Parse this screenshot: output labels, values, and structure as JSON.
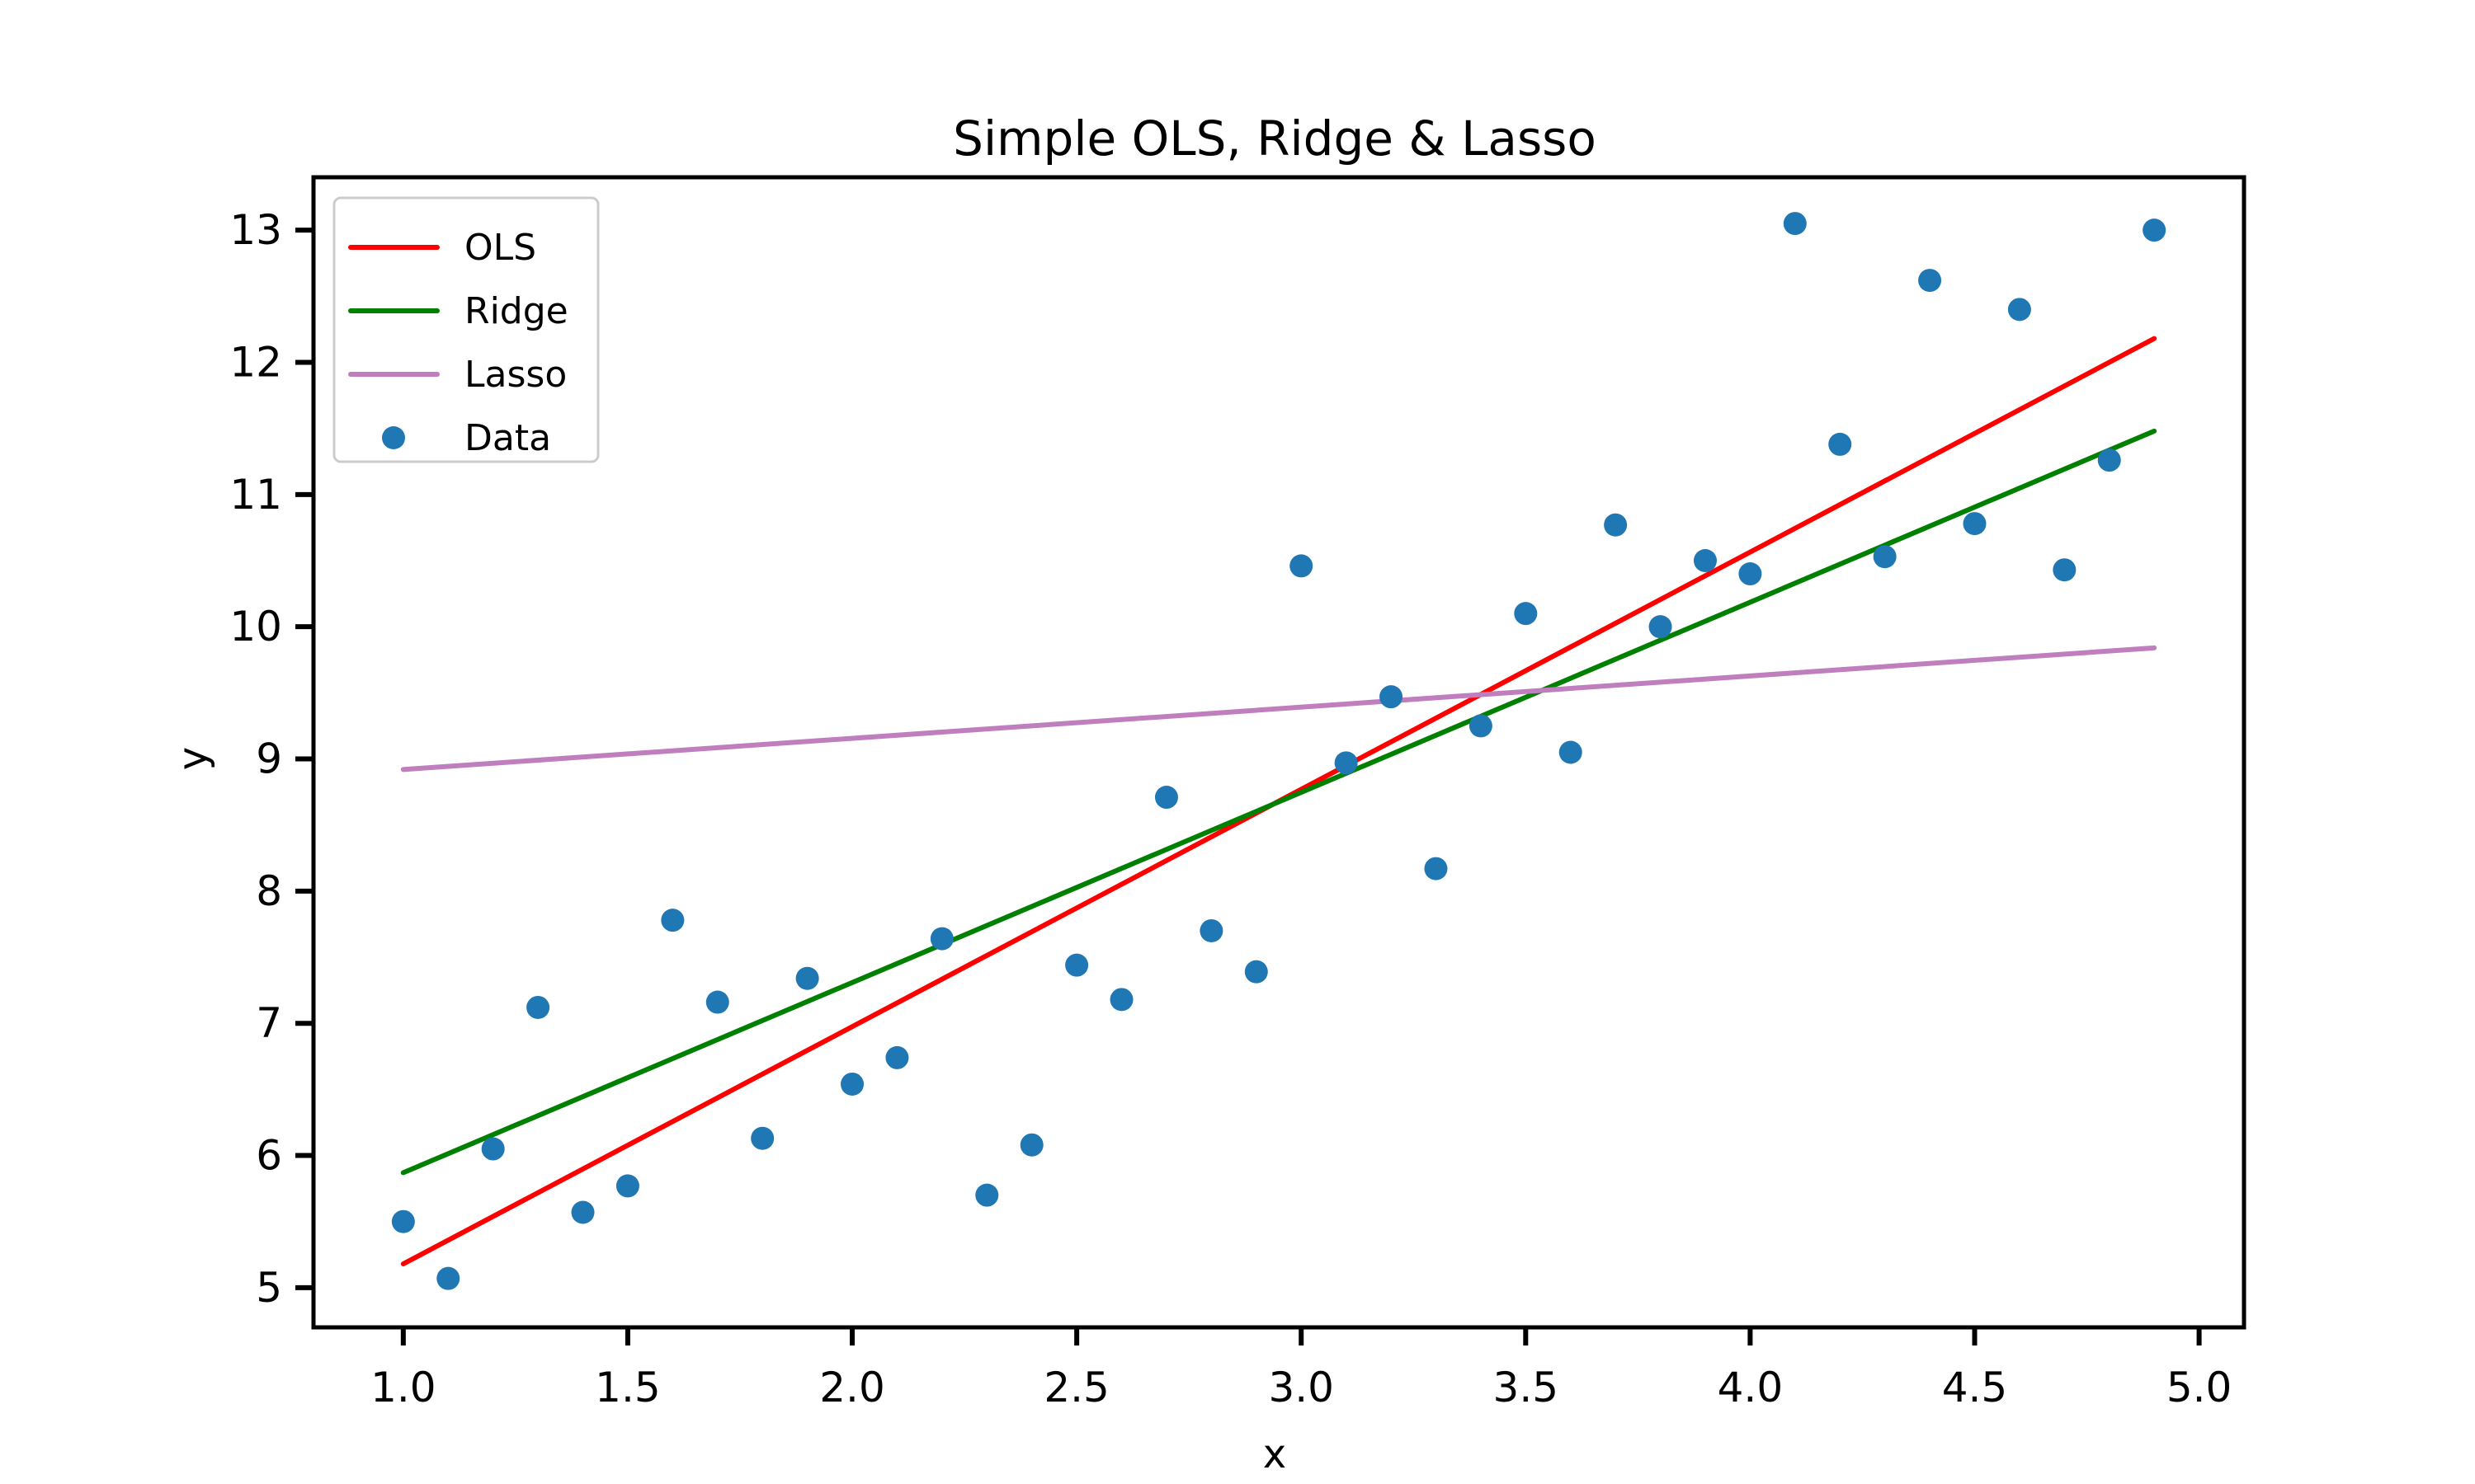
{
  "chart_data": {
    "type": "scatter",
    "title": "Simple OLS, Ridge & Lasso",
    "xlabel": "x",
    "ylabel": "y",
    "xlim": [
      0.8,
      5.1
    ],
    "ylim": [
      4.7,
      13.4
    ],
    "xticks": [
      "1.0",
      "1.5",
      "2.0",
      "2.5",
      "3.0",
      "3.5",
      "4.0",
      "4.5",
      "5.0"
    ],
    "yticks": [
      "5",
      "6",
      "7",
      "8",
      "9",
      "10",
      "11",
      "12",
      "13"
    ],
    "grid": false,
    "legend_position": "top-left",
    "scatter": {
      "name": "Data",
      "color": "#1f77b4",
      "x": [
        1.0,
        1.1,
        1.2,
        1.3,
        1.4,
        1.5,
        1.6,
        1.7,
        1.8,
        1.9,
        2.0,
        2.1,
        2.2,
        2.3,
        2.4,
        2.5,
        2.6,
        2.7,
        2.8,
        2.9,
        3.0,
        3.1,
        3.2,
        3.3,
        3.4,
        3.5,
        3.6,
        3.7,
        3.8,
        3.9,
        4.0,
        4.1,
        4.2,
        4.3,
        4.4,
        4.5,
        4.6,
        4.7,
        4.8,
        4.9
      ],
      "y": [
        5.5,
        5.07,
        6.05,
        7.12,
        5.57,
        5.77,
        7.78,
        7.16,
        6.13,
        7.34,
        6.54,
        6.74,
        7.64,
        5.7,
        6.08,
        7.44,
        7.18,
        8.71,
        7.7,
        7.39,
        10.46,
        8.97,
        9.47,
        8.17,
        9.25,
        10.1,
        9.05,
        10.77,
        10.0,
        10.5,
        10.4,
        13.05,
        11.38,
        10.53,
        12.62,
        10.78,
        12.4,
        10.43,
        11.26,
        13.0
      ]
    },
    "series": [
      {
        "name": "OLS",
        "color": "#ff0000",
        "x": [
          1.0,
          4.9
        ],
        "y": [
          5.18,
          12.18
        ]
      },
      {
        "name": "Ridge",
        "color": "#008000",
        "x": [
          1.0,
          4.9
        ],
        "y": [
          5.87,
          11.48
        ]
      },
      {
        "name": "Lasso",
        "color": "#bf7fbf",
        "x": [
          1.0,
          4.9
        ],
        "y": [
          8.92,
          9.84
        ]
      }
    ]
  }
}
